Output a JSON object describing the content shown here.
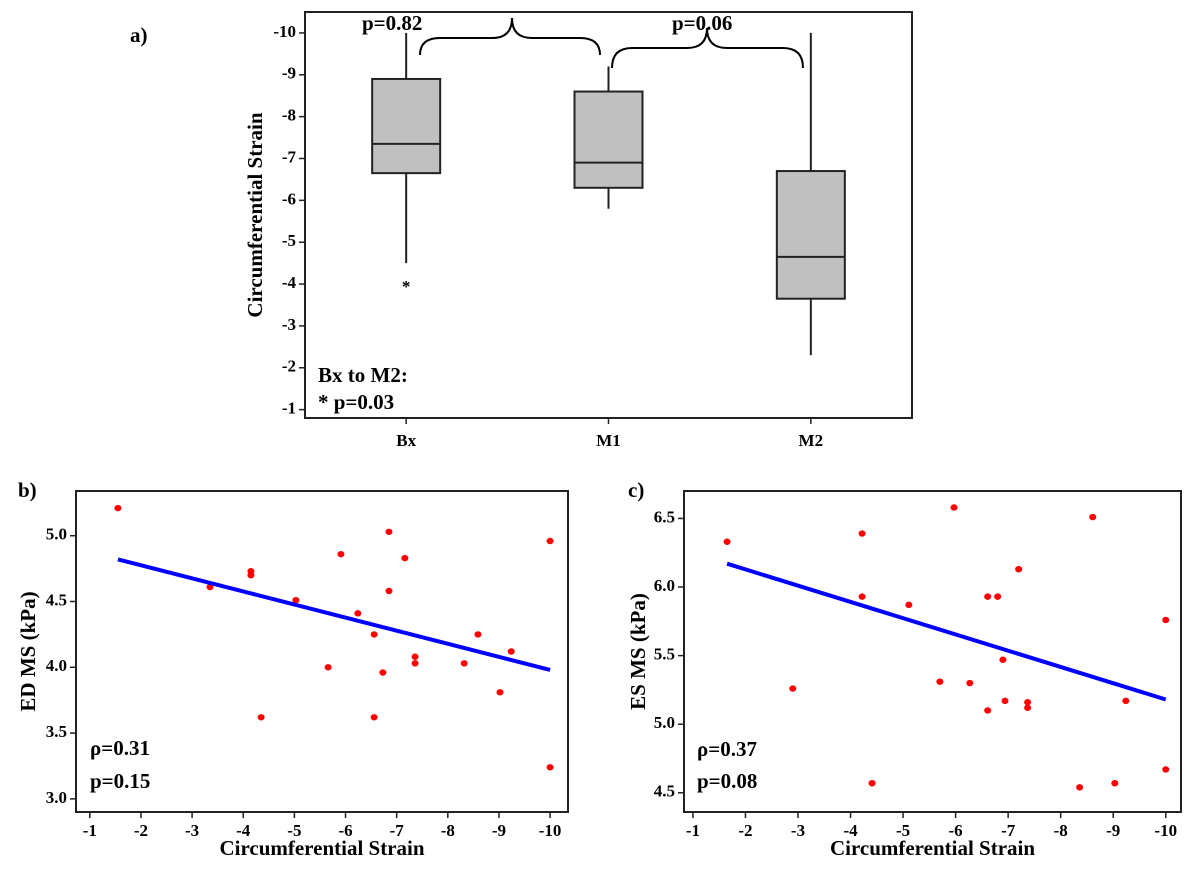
{
  "chart_data": [
    {
      "type": "box",
      "panel_label": "a)",
      "y_label": "Circumferential Strain",
      "categories": [
        "Bx",
        "M1",
        "M2"
      ],
      "color": "#c0c0c0",
      "outlier_symbol": "*",
      "boxes": [
        {
          "low": -10,
          "q1": -8.9,
          "median": -7.35,
          "q3": -6.65,
          "high": -4.5,
          "outliers": [
            -4
          ]
        },
        {
          "low": -9.2,
          "q1": -8.6,
          "median": -6.9,
          "q3": -6.3,
          "high": -5.8,
          "outliers": []
        },
        {
          "low": -10,
          "q1": -6.7,
          "median": -4.65,
          "q3": -3.65,
          "high": -2.3,
          "outliers": []
        }
      ],
      "ylim": [
        -0.8,
        -10.5
      ],
      "yticks": [
        -10,
        -9,
        -8,
        -7,
        -6,
        -5,
        -4,
        -3,
        -2,
        -1
      ],
      "annotations": [
        "p=0.82",
        "p=0.06",
        "Bx to M2:",
        "* p=0.03"
      ]
    },
    {
      "type": "scatter",
      "panel_label": "b)",
      "x_label": "Circumferential Strain",
      "y_label": "ED MS (kPa)",
      "color": "#ff0000",
      "x": [
        -1.55,
        -3.35,
        -4.15,
        -4.15,
        -4.35,
        -5.03,
        -5.66,
        -5.91,
        -6.24,
        -6.56,
        -6.56,
        -6.73,
        -6.85,
        -6.85,
        -7.16,
        -7.36,
        -7.36,
        -8.32,
        -8.59,
        -9.02,
        -9.24,
        -10.0,
        -10.0
      ],
      "values": [
        5.21,
        4.61,
        4.73,
        4.7,
        3.62,
        4.51,
        4.0,
        4.86,
        4.41,
        4.25,
        3.62,
        3.96,
        5.03,
        4.58,
        4.83,
        4.08,
        4.03,
        4.03,
        4.25,
        3.81,
        4.12,
        4.96,
        3.24
      ],
      "trend": {
        "x": [
          -1.55,
          -10.0
        ],
        "values": [
          4.82,
          3.98
        ],
        "color": "#0000ff"
      },
      "xlim": [
        -0.73,
        -10.35
      ],
      "xticks": [
        -1,
        -2,
        -3,
        -4,
        -5,
        -6,
        -7,
        -8,
        -9,
        -10
      ],
      "ylim": [
        2.9,
        5.34
      ],
      "yticks": [
        {
          "value": 3,
          "label": "3.0"
        },
        3.5,
        {
          "value": 4,
          "label": "4.0"
        },
        4.5,
        {
          "value": 5,
          "label": "5.0"
        }
      ],
      "annotations": [
        "ρ=0.31",
        "p=0.15"
      ]
    },
    {
      "type": "scatter",
      "panel_label": "c)",
      "x_label": "Circumferential Strain",
      "y_label": "ES MS (kPa)",
      "color": "#ff0000",
      "x": [
        -1.65,
        -2.9,
        -4.22,
        -4.22,
        -4.41,
        -5.11,
        -5.7,
        -5.97,
        -6.27,
        -6.61,
        -6.61,
        -6.8,
        -6.9,
        -6.94,
        -7.2,
        -7.37,
        -7.37,
        -8.36,
        -8.61,
        -9.03,
        -9.24,
        -10.0,
        -10.0
      ],
      "values": [
        6.33,
        5.26,
        6.39,
        5.93,
        4.57,
        5.87,
        5.31,
        6.58,
        5.3,
        5.93,
        5.1,
        5.93,
        5.47,
        5.17,
        6.13,
        5.16,
        5.12,
        4.54,
        6.51,
        4.57,
        5.17,
        5.76,
        4.67
      ],
      "trend": {
        "x": [
          -1.65,
          -10.0
        ],
        "values": [
          6.17,
          5.18
        ],
        "color": "#0000ff"
      },
      "xlim": [
        -0.83,
        -10.29
      ],
      "xticks": [
        -1,
        -2,
        -3,
        -4,
        -5,
        -6,
        -7,
        -8,
        -9,
        -10
      ],
      "ylim": [
        4.36,
        6.7
      ],
      "yticks": [
        4.5,
        {
          "value": 5,
          "label": "5.0"
        },
        5.5,
        {
          "value": 6,
          "label": "6.0"
        },
        6.5
      ],
      "annotations": [
        "ρ=0.37",
        "p=0.08"
      ]
    }
  ]
}
